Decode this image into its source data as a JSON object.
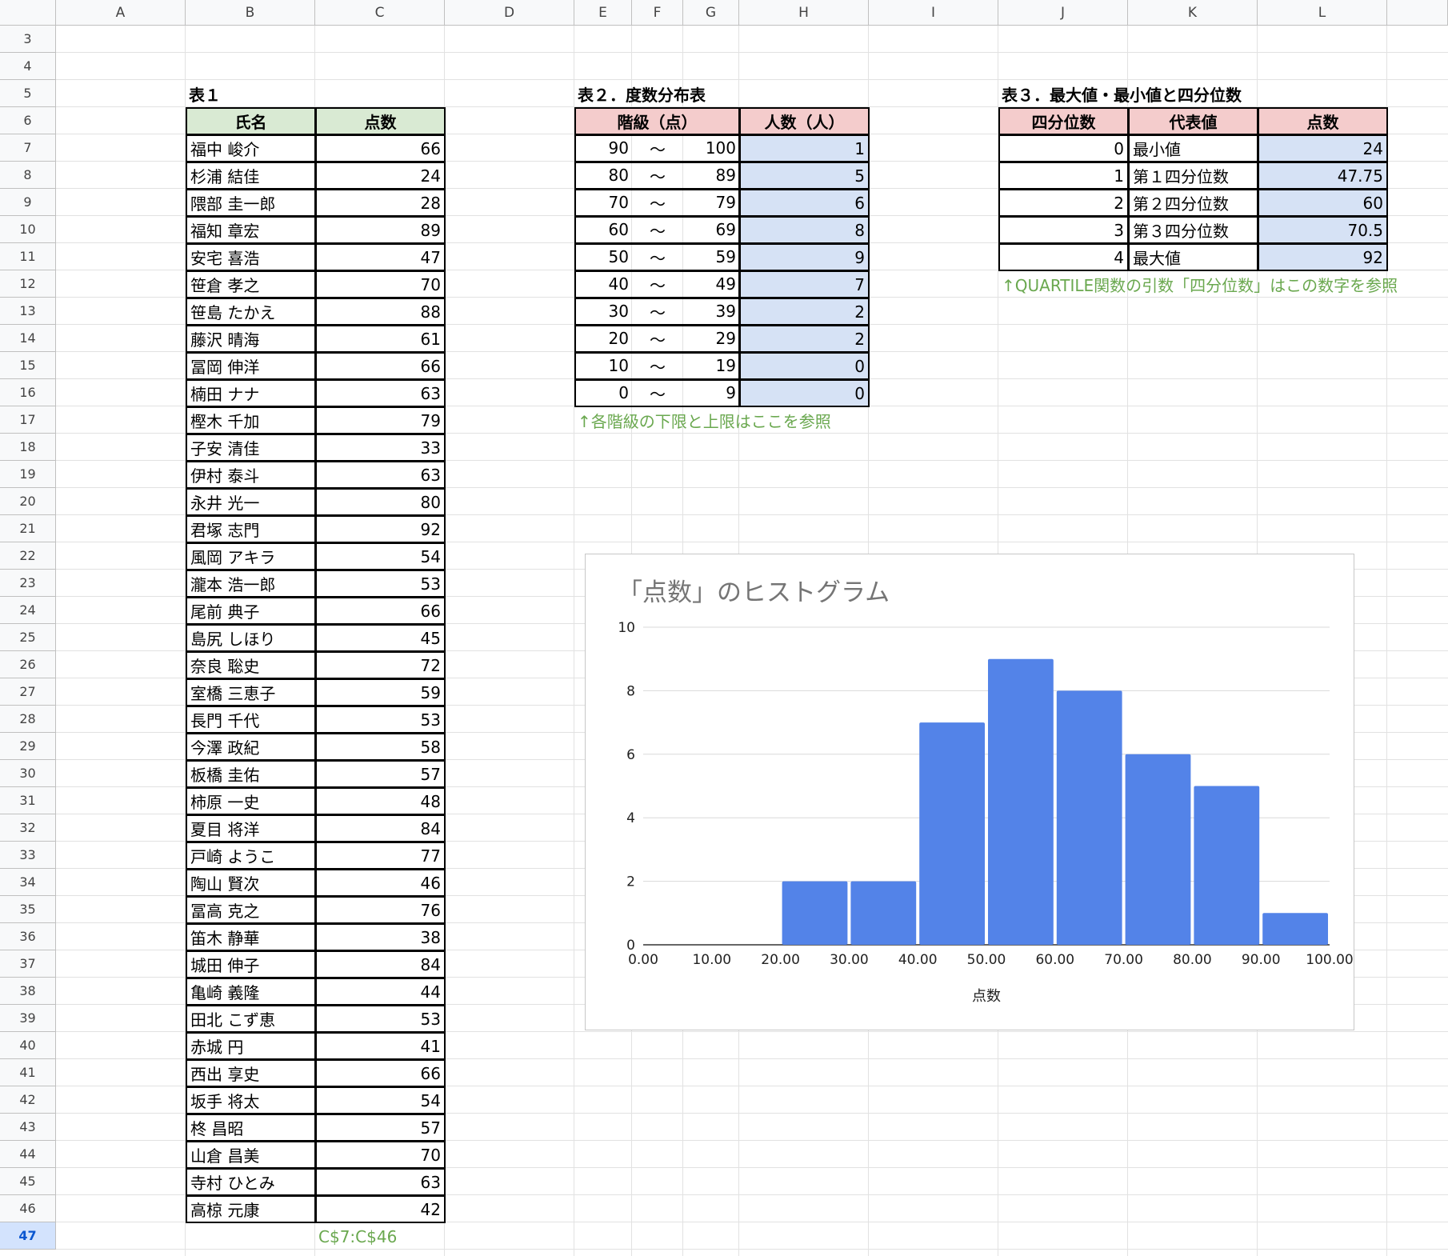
{
  "columns": [
    "A",
    "B",
    "C",
    "D",
    "E",
    "F",
    "G",
    "H",
    "I",
    "J",
    "K",
    "L"
  ],
  "rows": [
    3,
    4,
    5,
    6,
    7,
    8,
    9,
    10,
    11,
    12,
    13,
    14,
    15,
    16,
    17,
    18,
    19,
    20,
    21,
    22,
    23,
    24,
    25,
    26,
    27,
    28,
    29,
    30,
    31,
    32,
    33,
    34,
    35,
    36,
    37,
    38,
    39,
    40,
    41,
    42,
    43,
    44,
    45,
    46,
    47
  ],
  "active_row": 47,
  "table1": {
    "title": "表１",
    "headers": [
      "氏名",
      "点数"
    ],
    "rows": [
      [
        "福中 峻介",
        "66"
      ],
      [
        "杉浦 結佳",
        "24"
      ],
      [
        "隈部 圭一郎",
        "28"
      ],
      [
        "福知 章宏",
        "89"
      ],
      [
        "安宅 喜浩",
        "47"
      ],
      [
        "笹倉 孝之",
        "70"
      ],
      [
        "笹島 たかえ",
        "88"
      ],
      [
        "藤沢 晴海",
        "61"
      ],
      [
        "冨岡 伸洋",
        "66"
      ],
      [
        "楠田 ナナ",
        "63"
      ],
      [
        "樫木 千加",
        "79"
      ],
      [
        "子安 清佳",
        "33"
      ],
      [
        "伊村 泰斗",
        "63"
      ],
      [
        "永井 光一",
        "80"
      ],
      [
        "君塚 志門",
        "92"
      ],
      [
        "風岡 アキラ",
        "54"
      ],
      [
        "瀧本 浩一郎",
        "53"
      ],
      [
        "尾前 典子",
        "66"
      ],
      [
        "島尻 しほり",
        "45"
      ],
      [
        "奈良 聡史",
        "72"
      ],
      [
        "室橋 三恵子",
        "59"
      ],
      [
        "長門 千代",
        "53"
      ],
      [
        "今澤 政紀",
        "58"
      ],
      [
        "板橋 圭佑",
        "57"
      ],
      [
        "柿原 一史",
        "48"
      ],
      [
        "夏目 将洋",
        "84"
      ],
      [
        "戸崎 ようこ",
        "77"
      ],
      [
        "陶山 賢次",
        "46"
      ],
      [
        "冨高 克之",
        "76"
      ],
      [
        "笛木 静華",
        "38"
      ],
      [
        "城田 伸子",
        "84"
      ],
      [
        "亀崎 義隆",
        "44"
      ],
      [
        "田北 こず恵",
        "53"
      ],
      [
        "赤城 円",
        "41"
      ],
      [
        "西出 享史",
        "66"
      ],
      [
        "坂手 将太",
        "54"
      ],
      [
        "柊 昌昭",
        "57"
      ],
      [
        "山倉 昌美",
        "70"
      ],
      [
        "寺村 ひとみ",
        "63"
      ],
      [
        "高椋 元康",
        "42"
      ]
    ],
    "range_note": "C$7:C$46"
  },
  "table2": {
    "title": "表２．度数分布表",
    "headers": [
      "階級（点）",
      "人数（人）"
    ],
    "rows": [
      [
        "90",
        "〜",
        "100",
        "1"
      ],
      [
        "80",
        "〜",
        "89",
        "5"
      ],
      [
        "70",
        "〜",
        "79",
        "6"
      ],
      [
        "60",
        "〜",
        "69",
        "8"
      ],
      [
        "50",
        "〜",
        "59",
        "9"
      ],
      [
        "40",
        "〜",
        "49",
        "7"
      ],
      [
        "30",
        "〜",
        "39",
        "2"
      ],
      [
        "20",
        "〜",
        "29",
        "2"
      ],
      [
        "10",
        "〜",
        "19",
        "0"
      ],
      [
        "0",
        "〜",
        "9",
        "0"
      ]
    ],
    "note": "↑各階級の下限と上限はここを参照"
  },
  "table3": {
    "title": "表３．最大値・最小値と四分位数",
    "headers": [
      "四分位数",
      "代表値",
      "点数"
    ],
    "rows": [
      [
        "0",
        "最小値",
        "24"
      ],
      [
        "1",
        "第１四分位数",
        "47.75"
      ],
      [
        "2",
        "第２四分位数",
        "60"
      ],
      [
        "3",
        "第３四分位数",
        "70.5"
      ],
      [
        "4",
        "最大値",
        "92"
      ]
    ],
    "note": "↑QUARTILE関数の引数「四分位数」はこの数字を参照"
  },
  "chart_data": {
    "type": "bar",
    "title": "「点数」のヒストグラム",
    "xlabel": "点数",
    "ylabel": "",
    "x_ticks": [
      "0.00",
      "10.00",
      "20.00",
      "30.00",
      "40.00",
      "50.00",
      "60.00",
      "70.00",
      "80.00",
      "90.00",
      "100.00"
    ],
    "y_ticks": [
      "0",
      "2",
      "4",
      "6",
      "8",
      "10"
    ],
    "ylim": [
      0,
      10
    ],
    "xlim": [
      0,
      100
    ],
    "bins": [
      [
        0,
        10
      ],
      [
        10,
        20
      ],
      [
        20,
        30
      ],
      [
        30,
        40
      ],
      [
        40,
        50
      ],
      [
        50,
        60
      ],
      [
        60,
        70
      ],
      [
        70,
        80
      ],
      [
        80,
        90
      ],
      [
        90,
        100
      ]
    ],
    "values": [
      0,
      0,
      2,
      2,
      7,
      9,
      8,
      6,
      5,
      1
    ],
    "color": "#5383e8",
    "grid": true
  }
}
